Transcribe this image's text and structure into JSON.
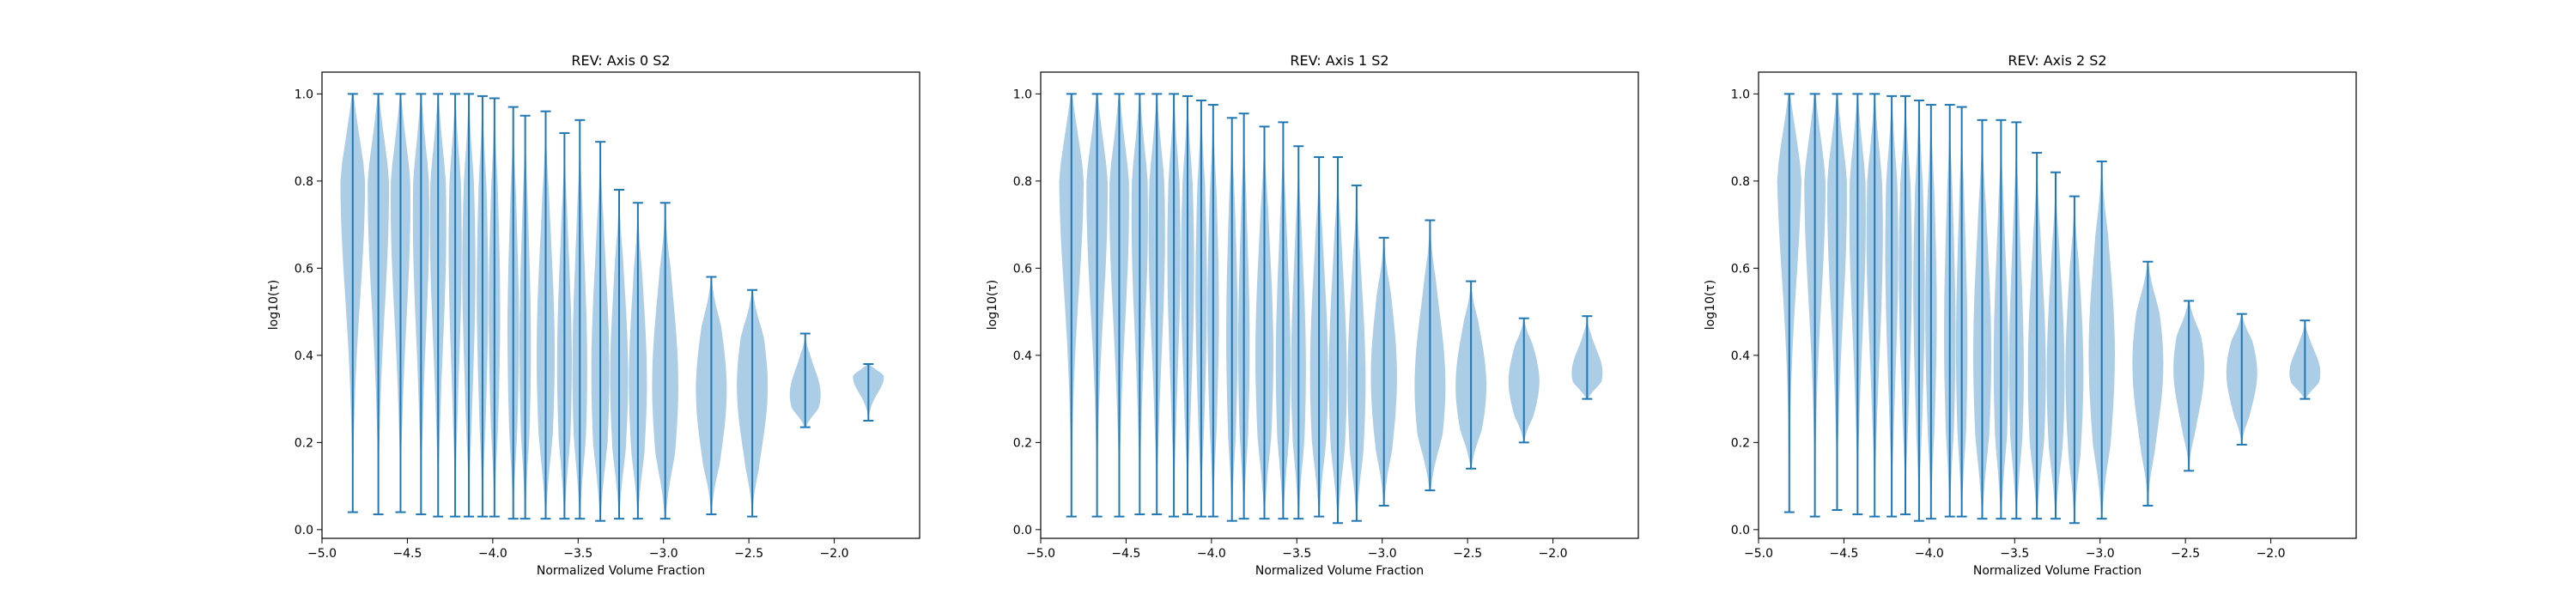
{
  "figure": {
    "violin_color": "#1f77b4",
    "violin_body_fill": "#9ec4e2"
  },
  "chart_data": [
    {
      "type": "violin",
      "title": "REV: Axis 0 S2",
      "xlabel": "Normalized Volume Fraction",
      "ylabel": "log10(τ)",
      "xlim": [
        -5.0,
        -1.5
      ],
      "ylim": [
        -0.02,
        1.05
      ],
      "xticks": [
        -5.0,
        -4.5,
        -4.0,
        -3.5,
        -3.0,
        -2.5,
        -2.0
      ],
      "xtick_labels": [
        "−5.0",
        "−4.5",
        "−4.0",
        "−3.5",
        "−3.0",
        "−2.5",
        "−2.0"
      ],
      "yticks": [
        0.0,
        0.2,
        0.4,
        0.6,
        0.8,
        1.0
      ],
      "ytick_labels": [
        "0.0",
        "0.2",
        "0.4",
        "0.6",
        "0.8",
        "1.0"
      ],
      "violins": [
        {
          "x": -4.82,
          "min": 0.04,
          "max": 1.0,
          "mode": 0.8
        },
        {
          "x": -4.67,
          "min": 0.035,
          "max": 1.0,
          "mode": 0.78
        },
        {
          "x": -4.54,
          "min": 0.04,
          "max": 1.0,
          "mode": 0.75
        },
        {
          "x": -4.42,
          "min": 0.035,
          "max": 1.0,
          "mode": 0.72
        },
        {
          "x": -4.32,
          "min": 0.03,
          "max": 1.0,
          "mode": 0.7
        },
        {
          "x": -4.22,
          "min": 0.03,
          "max": 1.0,
          "mode": 0.65
        },
        {
          "x": -4.14,
          "min": 0.03,
          "max": 1.0,
          "mode": 0.6
        },
        {
          "x": -4.06,
          "min": 0.03,
          "max": 0.995,
          "mode": 0.55
        },
        {
          "x": -3.99,
          "min": 0.03,
          "max": 0.99,
          "mode": 0.5
        },
        {
          "x": -3.88,
          "min": 0.025,
          "max": 0.97,
          "mode": 0.45
        },
        {
          "x": -3.81,
          "min": 0.025,
          "max": 0.95,
          "mode": 0.42
        },
        {
          "x": -3.69,
          "min": 0.025,
          "max": 0.96,
          "mode": 0.4
        },
        {
          "x": -3.58,
          "min": 0.025,
          "max": 0.91,
          "mode": 0.38
        },
        {
          "x": -3.49,
          "min": 0.025,
          "max": 0.94,
          "mode": 0.37
        },
        {
          "x": -3.37,
          "min": 0.02,
          "max": 0.89,
          "mode": 0.36
        },
        {
          "x": -3.26,
          "min": 0.025,
          "max": 0.78,
          "mode": 0.35
        },
        {
          "x": -3.15,
          "min": 0.025,
          "max": 0.75,
          "mode": 0.34
        },
        {
          "x": -2.99,
          "min": 0.025,
          "max": 0.75,
          "mode": 0.33
        },
        {
          "x": -2.72,
          "min": 0.035,
          "max": 0.58,
          "mode": 0.32
        },
        {
          "x": -2.48,
          "min": 0.03,
          "max": 0.55,
          "mode": 0.33
        },
        {
          "x": -2.17,
          "min": 0.235,
          "max": 0.45,
          "mode": 0.31
        },
        {
          "x": -1.8,
          "min": 0.25,
          "max": 0.38,
          "mode": 0.35
        }
      ]
    },
    {
      "type": "violin",
      "title": "REV: Axis 1 S2",
      "xlabel": "Normalized Volume Fraction",
      "ylabel": "log10(τ)",
      "xlim": [
        -5.0,
        -1.5
      ],
      "ylim": [
        -0.02,
        1.05
      ],
      "xticks": [
        -5.0,
        -4.5,
        -4.0,
        -3.5,
        -3.0,
        -2.5,
        -2.0
      ],
      "xtick_labels": [
        "−5.0",
        "−4.5",
        "−4.0",
        "−3.5",
        "−3.0",
        "−2.5",
        "−2.0"
      ],
      "yticks": [
        0.0,
        0.2,
        0.4,
        0.6,
        0.8,
        1.0
      ],
      "ytick_labels": [
        "0.0",
        "0.2",
        "0.4",
        "0.6",
        "0.8",
        "1.0"
      ],
      "violins": [
        {
          "x": -4.82,
          "min": 0.03,
          "max": 1.0,
          "mode": 0.82
        },
        {
          "x": -4.67,
          "min": 0.03,
          "max": 1.0,
          "mode": 0.78
        },
        {
          "x": -4.54,
          "min": 0.03,
          "max": 1.0,
          "mode": 0.75
        },
        {
          "x": -4.42,
          "min": 0.035,
          "max": 1.0,
          "mode": 0.72
        },
        {
          "x": -4.32,
          "min": 0.035,
          "max": 1.0,
          "mode": 0.68
        },
        {
          "x": -4.22,
          "min": 0.03,
          "max": 1.0,
          "mode": 0.64
        },
        {
          "x": -4.14,
          "min": 0.035,
          "max": 0.995,
          "mode": 0.6
        },
        {
          "x": -4.06,
          "min": 0.03,
          "max": 0.985,
          "mode": 0.55
        },
        {
          "x": -3.99,
          "min": 0.03,
          "max": 0.975,
          "mode": 0.5
        },
        {
          "x": -3.88,
          "min": 0.02,
          "max": 0.945,
          "mode": 0.45
        },
        {
          "x": -3.81,
          "min": 0.025,
          "max": 0.955,
          "mode": 0.42
        },
        {
          "x": -3.69,
          "min": 0.025,
          "max": 0.925,
          "mode": 0.4
        },
        {
          "x": -3.58,
          "min": 0.025,
          "max": 0.935,
          "mode": 0.38
        },
        {
          "x": -3.49,
          "min": 0.025,
          "max": 0.88,
          "mode": 0.37
        },
        {
          "x": -3.37,
          "min": 0.03,
          "max": 0.855,
          "mode": 0.36
        },
        {
          "x": -3.26,
          "min": 0.015,
          "max": 0.855,
          "mode": 0.35
        },
        {
          "x": -3.15,
          "min": 0.02,
          "max": 0.79,
          "mode": 0.34
        },
        {
          "x": -2.99,
          "min": 0.055,
          "max": 0.67,
          "mode": 0.35
        },
        {
          "x": -2.72,
          "min": 0.09,
          "max": 0.71,
          "mode": 0.33
        },
        {
          "x": -2.48,
          "min": 0.14,
          "max": 0.57,
          "mode": 0.33
        },
        {
          "x": -2.17,
          "min": 0.2,
          "max": 0.485,
          "mode": 0.34
        },
        {
          "x": -1.8,
          "min": 0.3,
          "max": 0.49,
          "mode": 0.36
        }
      ]
    },
    {
      "type": "violin",
      "title": "REV: Axis 2 S2",
      "xlabel": "Normalized Volume Fraction",
      "ylabel": "log10(τ)",
      "xlim": [
        -5.0,
        -1.5
      ],
      "ylim": [
        -0.02,
        1.05
      ],
      "xticks": [
        -5.0,
        -4.5,
        -4.0,
        -3.5,
        -3.0,
        -2.5,
        -2.0
      ],
      "xtick_labels": [
        "−5.0",
        "−4.5",
        "−4.0",
        "−3.5",
        "−3.0",
        "−2.5",
        "−2.0"
      ],
      "yticks": [
        0.0,
        0.2,
        0.4,
        0.6,
        0.8,
        1.0
      ],
      "ytick_labels": [
        "0.0",
        "0.2",
        "0.4",
        "0.6",
        "0.8",
        "1.0"
      ],
      "violins": [
        {
          "x": -4.82,
          "min": 0.04,
          "max": 1.0,
          "mode": 0.85
        },
        {
          "x": -4.67,
          "min": 0.03,
          "max": 1.0,
          "mode": 0.8
        },
        {
          "x": -4.54,
          "min": 0.045,
          "max": 1.0,
          "mode": 0.76
        },
        {
          "x": -4.42,
          "min": 0.035,
          "max": 1.0,
          "mode": 0.72
        },
        {
          "x": -4.32,
          "min": 0.03,
          "max": 1.0,
          "mode": 0.68
        },
        {
          "x": -4.22,
          "min": 0.03,
          "max": 0.995,
          "mode": 0.64
        },
        {
          "x": -4.14,
          "min": 0.035,
          "max": 0.995,
          "mode": 0.6
        },
        {
          "x": -4.06,
          "min": 0.02,
          "max": 0.985,
          "mode": 0.55
        },
        {
          "x": -3.99,
          "min": 0.025,
          "max": 0.975,
          "mode": 0.5
        },
        {
          "x": -3.88,
          "min": 0.03,
          "max": 0.975,
          "mode": 0.45
        },
        {
          "x": -3.81,
          "min": 0.03,
          "max": 0.97,
          "mode": 0.42
        },
        {
          "x": -3.69,
          "min": 0.025,
          "max": 0.94,
          "mode": 0.4
        },
        {
          "x": -3.58,
          "min": 0.025,
          "max": 0.94,
          "mode": 0.38
        },
        {
          "x": -3.49,
          "min": 0.025,
          "max": 0.935,
          "mode": 0.37
        },
        {
          "x": -3.37,
          "min": 0.025,
          "max": 0.865,
          "mode": 0.36
        },
        {
          "x": -3.26,
          "min": 0.025,
          "max": 0.82,
          "mode": 0.35
        },
        {
          "x": -3.15,
          "min": 0.015,
          "max": 0.765,
          "mode": 0.36
        },
        {
          "x": -2.99,
          "min": 0.025,
          "max": 0.845,
          "mode": 0.4
        },
        {
          "x": -2.72,
          "min": 0.055,
          "max": 0.615,
          "mode": 0.38
        },
        {
          "x": -2.48,
          "min": 0.135,
          "max": 0.525,
          "mode": 0.37
        },
        {
          "x": -2.17,
          "min": 0.195,
          "max": 0.495,
          "mode": 0.36
        },
        {
          "x": -1.8,
          "min": 0.3,
          "max": 0.48,
          "mode": 0.36
        }
      ]
    }
  ]
}
